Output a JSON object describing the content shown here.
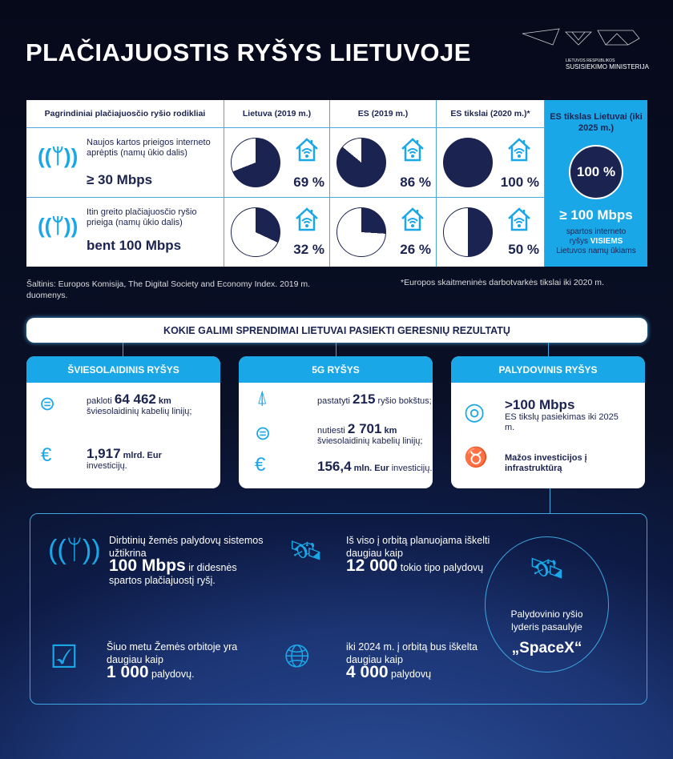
{
  "title": "PLAČIAJUOSTIS RYŠYS LIETUVOJE",
  "logo": {
    "line1": "LIETUVOS RESPUBLIKOS",
    "line2": "SUSISIEKIMO MINISTERIJA"
  },
  "table": {
    "headers": [
      "Pagrindiniai plačiajuosčio ryšio rodikliai",
      "Lietuva (2019 m.)",
      "ES (2019 m.)",
      "ES tikslai (2020 m.)*"
    ],
    "rows": [
      {
        "text": "Naujos kartos prieigos interneto aprėptis (namų ūkio dalis)",
        "speed": "≥ 30 Mbps",
        "values": [
          69,
          86,
          100
        ],
        "labels": [
          "69 %",
          "86 %",
          "100 %"
        ]
      },
      {
        "text": "Itin greito plačiajuosčio ryšio prieiga (namų ūkio dalis)",
        "speed": "bent 100 Mbps",
        "values": [
          32,
          26,
          50
        ],
        "labels": [
          "32 %",
          "26 %",
          "50 %"
        ]
      }
    ],
    "goal": {
      "header": "ES tikslas Lietuvai (iki 2025 m.)",
      "value": "100 %",
      "speed": "≥ 100 Mbps",
      "text1": "spartos interneto",
      "text2": "ryšys",
      "highlight": "VISIEMS",
      "text3": "Lietuvos namų ūkiams"
    }
  },
  "colors": {
    "accent": "#1aa7e8",
    "navy": "#1b2350"
  },
  "source": "Šaltinis: Europos Komisija, The Digital Society and Economy Index. 2019 m. duomenys.",
  "footnote": "*Europos skaitmeninės darbotvarkės tikslai iki 2020 m.",
  "solutions_title": "KOKIE GALIMI SPRENDIMAI LIETUVAI PASIEKTI GERESNIŲ REZULTATŲ",
  "cards": [
    {
      "title": "ŠVIESOLAIDINIS RYŠYS",
      "items": [
        {
          "pre": "pakloti",
          "num": "64 462",
          "unit": "km",
          "post": "šviesolaidinių kabelių linijų;"
        },
        {
          "pre": "",
          "num": "1,917",
          "unit": "mlrd. Eur",
          "post": "investicijų."
        }
      ]
    },
    {
      "title": "5G RYŠYS",
      "items": [
        {
          "pre": "pastatyti",
          "num": "215",
          "unit": "",
          "post": "ryšio bokštus;"
        },
        {
          "pre": "nutiesti",
          "num": "2 701",
          "unit": "km",
          "post": "šviesolaidinių kabelių linijų;"
        },
        {
          "pre": "",
          "num": "156,4",
          "unit": "mln. Eur",
          "post": "investicijų."
        }
      ]
    },
    {
      "title": "PALYDOVINIS RYŠYS",
      "items": [
        {
          "num": ">100 Mbps",
          "post": "ES tikslų pasiekimas iki 2025 m."
        },
        {
          "post": "Mažos investicijos į infrastruktūrą"
        }
      ]
    }
  ],
  "satellite": [
    {
      "pre": "Dirbtinių žemės palydovų sistemos užtikrina",
      "num": "100 Mbps",
      "post": "ir didesnės spartos plačiajuostį ryšį."
    },
    {
      "pre": "Iš viso į orbitą planuojama iškelti daugiau kaip",
      "num": "12 000",
      "post": "tokio tipo palydovų"
    },
    {
      "pre": "Šiuo metu Žemės orbitoje yra daugiau kaip",
      "num": "1 000",
      "post": "palydovų."
    },
    {
      "pre": "iki 2024 m. į orbitą bus iškelta daugiau kaip",
      "num": "4 000",
      "post": "palydovų"
    }
  ],
  "leader": {
    "text": "Palydovinio ryšio lyderis pasaulyje",
    "name": "„SpaceX“"
  }
}
